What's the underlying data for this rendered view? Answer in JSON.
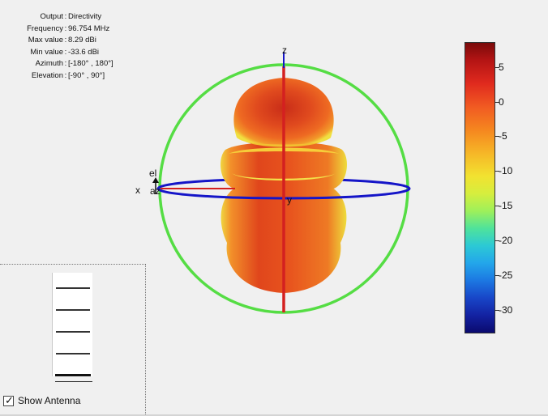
{
  "info": {
    "rows": [
      {
        "key": "Output",
        "value": "Directivity"
      },
      {
        "key": "Frequency",
        "value": "96.754 MHz"
      },
      {
        "key": "Max value",
        "value": "8.29 dBi"
      },
      {
        "key": "Min value",
        "value": "-33.6 dBi"
      },
      {
        "key": "Azimuth",
        "value": "[-180° , 180°]"
      },
      {
        "key": "Elevation",
        "value": "[-90° , 90°]"
      }
    ]
  },
  "axes": {
    "z_label": "z",
    "x_label": "x",
    "y_label": "y",
    "el_label": "el",
    "az_label": "az"
  },
  "colorbar": {
    "ticks": [
      "5",
      "0",
      "-5",
      "-10",
      "-15",
      "-20",
      "-25",
      "-30"
    ],
    "colors": {
      "top": "#7a0a0a",
      "bottom": "#0a0a6e"
    }
  },
  "colors": {
    "azimuth_ring": "#1515c8",
    "elevation_ring": "#55dd44",
    "pattern_main": "#e24a1e",
    "pattern_edge": "#f0e040"
  },
  "controls": {
    "show_antenna_label": "Show Antenna",
    "show_antenna_checked": true
  }
}
